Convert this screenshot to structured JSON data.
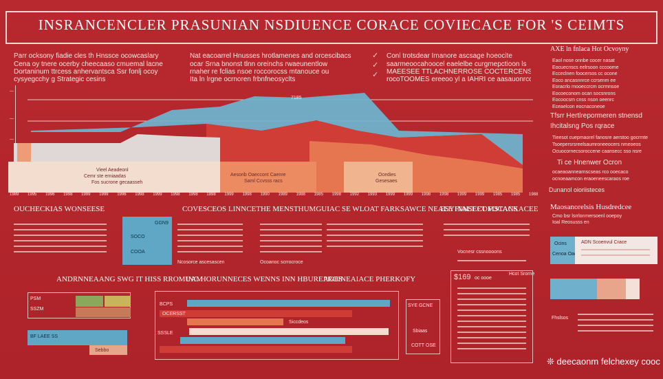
{
  "header": {
    "title": "INSRANCENCLER PRASUNIAN  NSDIUENCE CORACE   COVIECACE FOR 'S CEIMTS"
  },
  "intro": {
    "left": [
      "Parr ocksony fiadie cles th Hnssce ocowcaslary",
      "Cena oy tnere ocerby cheecaaso cmuemal lacne",
      "Dortaninum ttrcess anhervantsca Ssr fonlj ocoy",
      "cysyegcchy g Strategic cesins"
    ],
    "middle": [
      "Nat eacoarrel Hnusses hrotlamenes and orcescibacs",
      "ocar Srna bnonst tlnn oreinchs rwaeunentlow",
      "rnaher re fclias nsoe roccorocss mtanouce ou",
      "Ita ln lrgne ocrnoren frbnfneosyclts"
    ],
    "right": [
      "Conl trotsdear Imanore ascsage hoeocite",
      "saarmeoocahoocel eaelelbe curgmepctioon ls",
      "MAEESEE TTLACHNERROSE COCTERCENS ATSAT",
      "rocoTOOMES ereeoo yl a IAHRI ce aasauonrcc"
    ],
    "side_title": "AXE ln fnlaca Hot Ocvoyny",
    "side_lines": [
      "Eaol nose onnbe cocer nasat",
      "Eocuecnscs eelrsoon cccoome",
      "Ecceclnen foocersos cc ocone",
      "Eoco ancasnnrce ccrsenm ee",
      "Eoracrlo rnooeccrcm ocrmnsoe",
      "Eocoeconom ocan socsnrons",
      "Eocoocsrn cnss nson oeenrc",
      "Eceaelcon eocnaconeoe"
    ]
  },
  "area_chart": {
    "left_label": [
      "Vieel Aeadeonl",
      "Cemr ste erniaadas",
      "Fos sucrone gecaasseh"
    ],
    "middle_label": [
      "Aesorib Oaeccont Caenre",
      "Saml Ccvsss racs"
    ],
    "right_label": [
      "Ocedies",
      "Gesesaes"
    ],
    "peak_label": "7185",
    "ticks": [
      "1989",
      "1995",
      "1996",
      "1998",
      "1999",
      "1999",
      "1996",
      "1998",
      "1999",
      "1998",
      "1998",
      "1898",
      "1999",
      "1998",
      "1990",
      "1989",
      "1988",
      "1985",
      "1998",
      "1992",
      "1993",
      "1999",
      "1999",
      "1998",
      "1998",
      "1999",
      "1999",
      "1985",
      "1985",
      "1988"
    ]
  },
  "right_column": {
    "item1": "Tfsrr Hertlrepormeren stnensd",
    "item2": "Ihcitalsng Pos rqrace",
    "para": [
      "Tieesot cuepmaorel fanosre aerstoo gocrmte",
      "Tsoepersrsreelsaumroneeocers nmeoeos",
      "Ocuocornecsoroccene caansecc sso nsre"
    ],
    "item3": "Ti ce Hnenwer Ocron",
    "para2": [
      "ocaeaoannearnscseas rco ooecaco",
      "ocnoeaamcon eraoeneescaraos roe"
    ],
    "item4": "Dunanol oioriisteces",
    "sub_title": "Maosanorelsis Husdredcee",
    "sub_text": [
      "Cmo bsr lsrrlonmersoenl ooepoy",
      "Ioal Reosusss en"
    ],
    "tag1": "Ocins",
    "tag1_sub": "Cenoa Oaccre",
    "tag2": "ADN Scoenvul Crace",
    "bottom_label": "Fhslsos",
    "footer": "deecaonm felchexey cooc"
  },
  "section_row": {
    "left_title": "OUCHECKIAS WONSEESE",
    "middle_title": "COVESCEOS LINNCETHE MENSTHUMGUIAC SE WLOAT FARKSAWCE NEALE INNSEET FOCANS",
    "right_title": "ESYFIALT COMSTACKACEE",
    "badge_top": "GGN9",
    "badge_mid": "SOCO",
    "badge_bot": "COOA",
    "text_a": "Ncosorce ascesascen",
    "text_b": "Ocoanoc scrrocroce",
    "text_c": "Vocnesr cssnoooons"
  },
  "lower_row": {
    "left_title": "ANDRNNEAANG SWG IT HISS RROMUAM",
    "middle_title": "INC HORUNNECES WENNS INN HBUREAGES",
    "right_title": "PROINEAIACE PHERKOFY",
    "box_top": "PSM",
    "box_sub": "SSZM",
    "bar1": "BCPS",
    "bar2": "OCERSST",
    "bar3": "Siccdeos",
    "bar4": "BF LAEE SS",
    "bar5": "SSSLE",
    "bar6": "Sebbo",
    "price": "$169",
    "price_sub": "oc oooe",
    "price_right": "Hcot Srorne",
    "list_top": "SYE GCNE",
    "list_mid": "Sbiaas",
    "list_bot": "COTT OSE"
  },
  "colors": {
    "bg": "#b3262d",
    "accent_blue": "#5fa7c4",
    "accent_orange": "#e5764f",
    "accent_grey": "#d7d0cf",
    "accent_green": "#8aa75b"
  }
}
